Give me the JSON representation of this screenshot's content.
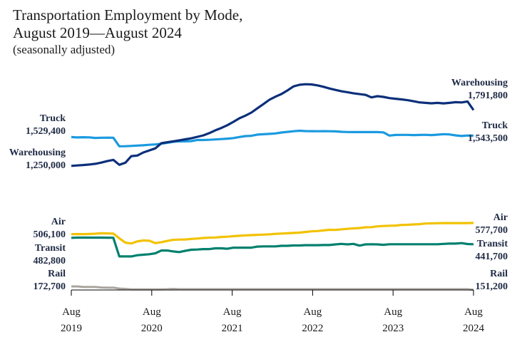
{
  "title": {
    "line1": "Transportation Employment by Mode,",
    "line2": "August 2019—August 2024",
    "line3": "(seasonally adjusted)"
  },
  "colors": {
    "warehousing": "#0b2f7a",
    "truck": "#1a9ae0",
    "air": "#f2c200",
    "transit": "#00806e",
    "rail": "#aaa59f"
  },
  "chart_data": {
    "type": "line",
    "title": "Transportation Employment by Mode, August 2019—August 2024 (seasonally adjusted)",
    "x_ticks": [
      {
        "month": "Aug",
        "year": "2019"
      },
      {
        "month": "Aug",
        "year": "2020"
      },
      {
        "month": "Aug",
        "year": "2021"
      },
      {
        "month": "Aug",
        "year": "2022"
      },
      {
        "month": "Aug",
        "year": "2023"
      },
      {
        "month": "Aug",
        "year": "2024"
      }
    ],
    "series": [
      {
        "key": "warehousing",
        "name": "Warehousing",
        "start_label": "1,250,000",
        "end_label": "1,791,800",
        "values": [
          1250000,
          1254000,
          1258000,
          1263000,
          1270000,
          1282000,
          1296000,
          1308000,
          1260000,
          1280000,
          1345000,
          1350000,
          1380000,
          1400000,
          1420000,
          1470000,
          1480000,
          1489000,
          1498000,
          1508000,
          1518000,
          1532000,
          1546000,
          1568000,
          1595000,
          1618000,
          1645000,
          1678000,
          1712000,
          1738000,
          1768000,
          1810000,
          1850000,
          1892000,
          1922000,
          1948000,
          1982000,
          2022000,
          2038000,
          2043000,
          2041000,
          2032000,
          2018000,
          2002000,
          1988000,
          1975000,
          1966000,
          1955000,
          1947000,
          1940000,
          1915000,
          1927000,
          1920000,
          1908000,
          1902000,
          1896000,
          1888000,
          1878000,
          1867000,
          1862000,
          1858000,
          1862000,
          1857000,
          1862000,
          1869000,
          1866000,
          1876000,
          1791800
        ]
      },
      {
        "key": "truck",
        "name": "Truck",
        "start_label": "1,529,400",
        "end_label": "1,543,500",
        "values": [
          1529400,
          1526000,
          1528000,
          1527000,
          1521000,
          1523000,
          1524000,
          1523000,
          1440000,
          1441000,
          1444000,
          1447000,
          1450000,
          1455000,
          1458000,
          1465000,
          1474000,
          1484000,
          1488000,
          1488000,
          1491000,
          1502000,
          1501000,
          1503000,
          1507000,
          1510000,
          1514000,
          1520000,
          1530000,
          1539000,
          1542000,
          1554000,
          1557000,
          1561000,
          1565000,
          1574000,
          1580000,
          1586000,
          1591000,
          1588000,
          1587000,
          1586000,
          1587000,
          1586000,
          1585000,
          1581000,
          1579000,
          1578000,
          1578000,
          1578000,
          1578000,
          1578000,
          1575000,
          1544000,
          1550000,
          1551000,
          1551000,
          1549000,
          1550000,
          1552000,
          1549000,
          1553000,
          1558000,
          1555000,
          1546000,
          1540000,
          1545000,
          1543500
        ]
      },
      {
        "key": "air",
        "name": "Air",
        "start_label": "506,100",
        "end_label": "577,700",
        "values": [
          506100,
          507000,
          506500,
          507500,
          509000,
          512000,
          511000,
          510000,
          480000,
          452000,
          447000,
          460000,
          466000,
          464000,
          449000,
          455000,
          463000,
          470000,
          472000,
          472000,
          476000,
          478000,
          482000,
          484000,
          485000,
          488000,
          490000,
          493000,
          496000,
          498000,
          500000,
          502000,
          503000,
          505000,
          508000,
          510000,
          512000,
          514000,
          516000,
          520000,
          524000,
          526000,
          530000,
          534000,
          533000,
          537000,
          540000,
          543000,
          545000,
          550000,
          551000,
          556000,
          558000,
          560000,
          561000,
          565000,
          566000,
          568000,
          570000,
          574000,
          575000,
          576000,
          577000,
          577000,
          577000,
          577000,
          577000,
          577700
        ]
      },
      {
        "key": "transit",
        "name": "Transit",
        "start_label": "482,800",
        "end_label": "441,700",
        "values": [
          482800,
          484000,
          484000,
          484000,
          484000,
          484000,
          483500,
          483000,
          364000,
          364000,
          364000,
          372000,
          375000,
          378000,
          384000,
          402000,
          402000,
          396000,
          392000,
          400000,
          407000,
          408000,
          411000,
          411000,
          416000,
          416000,
          413000,
          420000,
          420000,
          420000,
          420000,
          427000,
          428000,
          428000,
          428000,
          432000,
          432000,
          434000,
          434000,
          436000,
          436000,
          436000,
          437000,
          437000,
          441000,
          444000,
          441000,
          444000,
          433000,
          441000,
          442000,
          441000,
          438000,
          442000,
          442000,
          442000,
          442000,
          442000,
          442000,
          442000,
          442000,
          442000,
          444000,
          446000,
          446000,
          449000,
          443000,
          441700
        ]
      },
      {
        "key": "rail",
        "name": "Rail",
        "start_label": "172,700",
        "end_label": "151,200",
        "values": [
          172700,
          172700,
          169000,
          169000,
          169000,
          166000,
          165000,
          165000,
          159000,
          157000,
          154000,
          154000,
          154000,
          154000,
          154000,
          154000,
          155000,
          157000,
          155000,
          155000,
          155000,
          155000,
          155000,
          155000,
          155000,
          155000,
          155000,
          155000,
          155000,
          155000,
          155000,
          155000,
          155000,
          155000,
          155000,
          155000,
          155000,
          155000,
          155000,
          155000,
          155000,
          155000,
          155000,
          155000,
          155000,
          155000,
          155000,
          155000,
          155000,
          155000,
          155000,
          155000,
          155000,
          155000,
          155000,
          155000,
          155000,
          155000,
          155000,
          155000,
          155000,
          155000,
          155000,
          155000,
          155000,
          155000,
          155000,
          151200
        ]
      }
    ]
  }
}
